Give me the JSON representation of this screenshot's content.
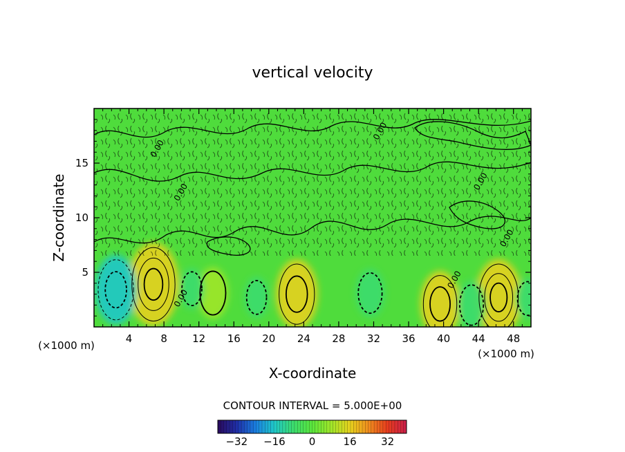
{
  "chart_data": {
    "type": "heatmap",
    "title": "vertical velocity",
    "xlabel": "X-coordinate",
    "ylabel": "Z-coordinate",
    "x_unit_left": "(×1000 m)",
    "x_unit_right": "(×1000 m)",
    "xlim": [
      0,
      50
    ],
    "ylim": [
      0,
      20
    ],
    "x_ticks": [
      4,
      8,
      12,
      16,
      20,
      24,
      28,
      32,
      36,
      40,
      44,
      48
    ],
    "y_ticks": [
      5,
      10,
      15
    ],
    "contour_interval_text": "CONTOUR INTERVAL = 5.000E+00",
    "contour_labels": [
      {
        "x": 7.5,
        "z": 16.2,
        "text": "0.00"
      },
      {
        "x": 10.2,
        "z": 12.2,
        "text": "0.00"
      },
      {
        "x": 33.0,
        "z": 17.8,
        "text": "0.00"
      },
      {
        "x": 44.5,
        "z": 13.2,
        "text": "0.00"
      },
      {
        "x": 47.5,
        "z": 8.0,
        "text": "0.00"
      },
      {
        "x": 10.2,
        "z": 2.5,
        "text": "0.00"
      },
      {
        "x": 41.5,
        "z": 4.2,
        "text": "0.00"
      }
    ],
    "colorbar": {
      "range": [
        -40,
        40
      ],
      "ticks": [
        -32,
        -16,
        0,
        16,
        32
      ],
      "colors": [
        "#2a0a5c",
        "#1f2ea6",
        "#1a7ee0",
        "#20c8c8",
        "#3cdc6e",
        "#5ae63c",
        "#a0e62a",
        "#e6d21e",
        "#f08c1e",
        "#e63c1e",
        "#c81e4a"
      ]
    },
    "features": [
      {
        "x": 6.8,
        "z": 3.9,
        "peak": 18,
        "sign": "positive"
      },
      {
        "x": 23.2,
        "z": 3.0,
        "peak": 14,
        "sign": "positive"
      },
      {
        "x": 39.6,
        "z": 2.1,
        "peak": 13,
        "sign": "positive"
      },
      {
        "x": 46.3,
        "z": 2.7,
        "peak": 16,
        "sign": "positive"
      },
      {
        "x": 13.6,
        "z": 3.1,
        "peak": 9,
        "sign": "positive"
      },
      {
        "x": 2.5,
        "z": 3.4,
        "peak": -14,
        "sign": "negative"
      },
      {
        "x": 11.2,
        "z": 3.5,
        "peak": -6,
        "sign": "negative"
      },
      {
        "x": 18.6,
        "z": 2.7,
        "peak": -6,
        "sign": "negative"
      },
      {
        "x": 31.6,
        "z": 3.1,
        "peak": -8,
        "sign": "negative"
      },
      {
        "x": 43.2,
        "z": 2.0,
        "peak": -8,
        "sign": "negative"
      },
      {
        "x": 49.6,
        "z": 2.6,
        "peak": -6,
        "sign": "negative"
      }
    ]
  }
}
